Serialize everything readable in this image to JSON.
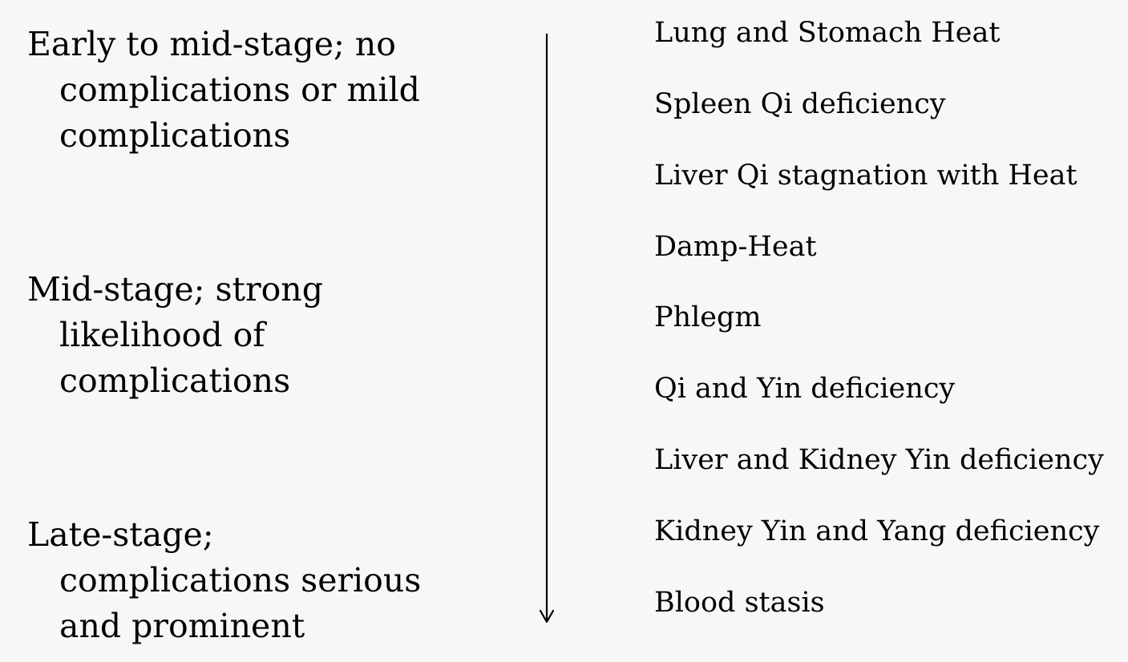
{
  "stages": [
    {
      "lines": [
        "Early to mid-stage; no",
        "complications or mild",
        "complications"
      ]
    },
    {
      "lines": [
        "Mid-stage; strong",
        "likelihood of",
        "complications"
      ]
    },
    {
      "lines": [
        "Late-stage;",
        "complications serious",
        "and prominent"
      ]
    }
  ],
  "patterns": [
    "Lung and Stomach Heat",
    "Spleen Qi deficiency",
    "Liver Qi stagnation with Heat",
    "Damp-Heat",
    "Phlegm",
    "Qi and Yin deficiency",
    "Liver and Kidney Yin deficiency",
    "Kidney Yin and Yang deficiency",
    "Blood stasis"
  ]
}
